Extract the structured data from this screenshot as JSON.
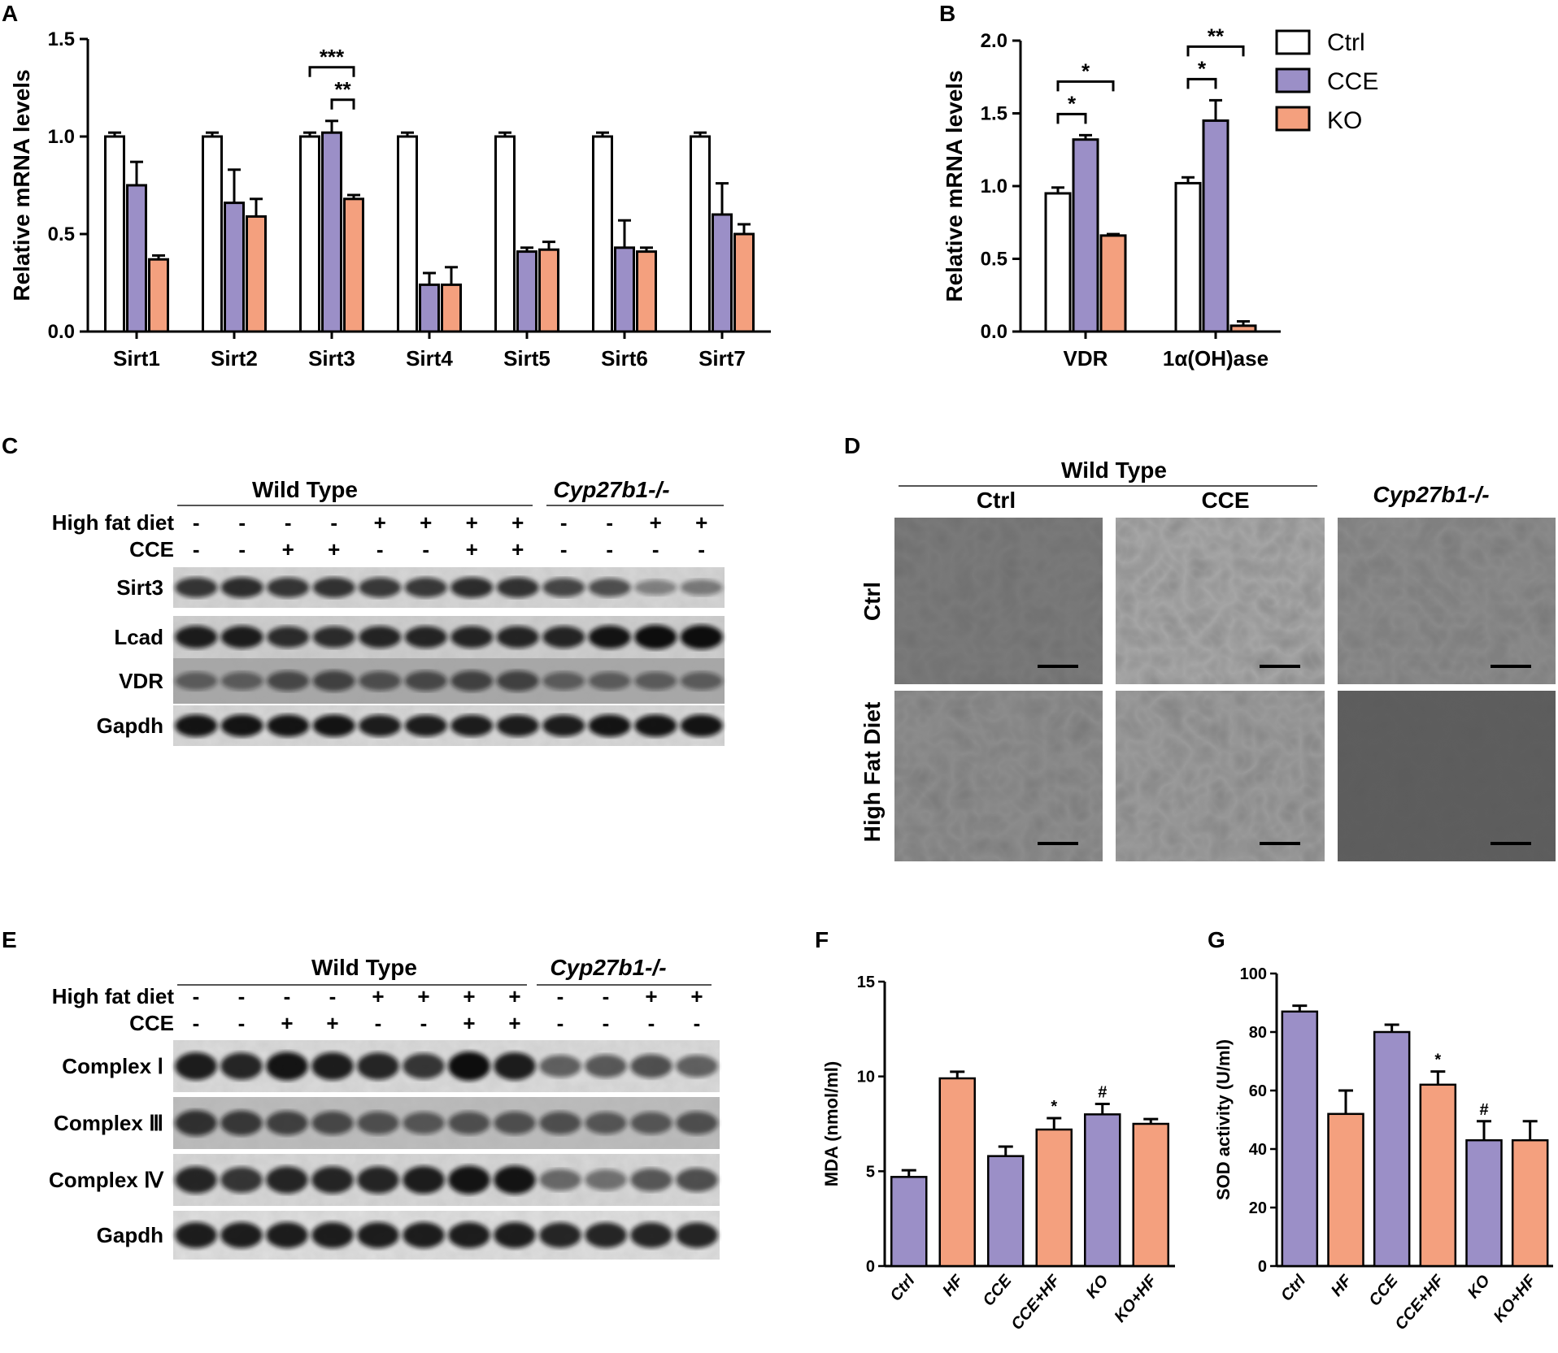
{
  "panels": {
    "A": "A",
    "B": "B",
    "C": "C",
    "D": "D",
    "E": "E",
    "F": "F",
    "G": "G"
  },
  "colors": {
    "ctrl": "#ffffff",
    "cce": "#9b8fc7",
    "ko": "#f4a07e",
    "edge": "#000000"
  },
  "legend": {
    "items": [
      "Ctrl",
      "CCE",
      "KO"
    ]
  },
  "chart_data": [
    {
      "panel": "A",
      "type": "bar",
      "ylabel": "Relative mRNA levels",
      "ylim": [
        0,
        1.5
      ],
      "yticks": [
        "0.0",
        "0.5",
        "1.0",
        "1.5"
      ],
      "categories": [
        "Sirt1",
        "Sirt2",
        "Sirt3",
        "Sirt4",
        "Sirt5",
        "Sirt6",
        "Sirt7"
      ],
      "series": [
        {
          "name": "Ctrl",
          "values": [
            1.0,
            1.0,
            1.0,
            1.0,
            1.0,
            1.0,
            1.0
          ],
          "err": [
            0.02,
            0.02,
            0.02,
            0.02,
            0.02,
            0.02,
            0.02
          ]
        },
        {
          "name": "CCE",
          "values": [
            0.75,
            0.66,
            1.02,
            0.24,
            0.41,
            0.43,
            0.6
          ],
          "err": [
            0.12,
            0.17,
            0.06,
            0.06,
            0.02,
            0.14,
            0.16
          ]
        },
        {
          "name": "KO",
          "values": [
            0.37,
            0.59,
            0.68,
            0.24,
            0.42,
            0.41,
            0.5
          ],
          "err": [
            0.02,
            0.09,
            0.02,
            0.09,
            0.04,
            0.02,
            0.05
          ]
        }
      ],
      "annotations": [
        {
          "category": "Sirt3",
          "from": "Ctrl",
          "to": "KO",
          "text": "***"
        },
        {
          "category": "Sirt3",
          "from": "CCE",
          "to": "KO",
          "text": "**"
        }
      ]
    },
    {
      "panel": "B",
      "type": "bar",
      "ylabel": "Relative mRNA levels",
      "ylim": [
        0,
        2.0
      ],
      "yticks": [
        "0.0",
        "0.5",
        "1.0",
        "1.5",
        "2.0"
      ],
      "categories": [
        "VDR",
        "1α(OH)ase"
      ],
      "series": [
        {
          "name": "Ctrl",
          "values": [
            0.95,
            1.02
          ],
          "err": [
            0.04,
            0.04
          ]
        },
        {
          "name": "CCE",
          "values": [
            1.32,
            1.45
          ],
          "err": [
            0.03,
            0.14
          ]
        },
        {
          "name": "KO",
          "values": [
            0.66,
            0.04
          ],
          "err": [
            0.01,
            0.03
          ]
        }
      ],
      "annotations": [
        {
          "category": "VDR",
          "from": "Ctrl",
          "to": "CCE",
          "text": "*"
        },
        {
          "category": "VDR",
          "from": "Ctrl",
          "to": "KO",
          "text": "*"
        },
        {
          "category": "1α(OH)ase",
          "from": "Ctrl",
          "to": "CCE",
          "text": "*"
        },
        {
          "category": "1α(OH)ase",
          "from": "Ctrl",
          "to": "KO",
          "text": "**"
        }
      ]
    },
    {
      "panel": "F",
      "type": "bar",
      "ylabel": "MDA (nmol/ml)",
      "ylim": [
        0,
        15
      ],
      "yticks": [
        "0",
        "5",
        "10",
        "15"
      ],
      "categories": [
        "Ctrl",
        "HF",
        "CCE",
        "CCE+HF",
        "KO",
        "KO+HF"
      ],
      "values": [
        4.7,
        9.9,
        5.8,
        7.2,
        8.0,
        7.5
      ],
      "err": [
        0.35,
        0.35,
        0.5,
        0.6,
        0.55,
        0.25
      ],
      "bar_colors": [
        "cce",
        "ko",
        "cce",
        "ko",
        "cce",
        "ko"
      ],
      "marks": [
        "",
        "",
        "",
        "*",
        "#",
        ""
      ]
    },
    {
      "panel": "G",
      "type": "bar",
      "ylabel": "SOD activity (U/ml)",
      "ylim": [
        0,
        100
      ],
      "yticks": [
        "0",
        "20",
        "40",
        "60",
        "80",
        "100"
      ],
      "categories": [
        "Ctrl",
        "HF",
        "CCE",
        "CCE+HF",
        "KO",
        "KO+HF"
      ],
      "values": [
        87,
        52,
        80,
        62,
        43,
        43
      ],
      "err": [
        2,
        8,
        2.5,
        4.5,
        6.5,
        6.5
      ],
      "bar_colors": [
        "cce",
        "ko",
        "cce",
        "ko",
        "cce",
        "ko"
      ],
      "marks": [
        "",
        "",
        "",
        "*",
        "#",
        ""
      ]
    }
  ],
  "blot_C": {
    "wild_type": "Wild Type",
    "knockout": "Cyp27b1-/-",
    "row_high_fat": "High fat diet",
    "row_cce": "CCE",
    "high_fat": [
      "-",
      "-",
      "-",
      "-",
      "+",
      "+",
      "+",
      "+",
      "-",
      "-",
      "+",
      "+"
    ],
    "cce": [
      "-",
      "-",
      "+",
      "+",
      "-",
      "-",
      "+",
      "+",
      "-",
      "-",
      "-",
      "-"
    ],
    "bands": [
      "Sirt3",
      "Lcad",
      "VDR",
      "Gapdh"
    ]
  },
  "blot_E": {
    "wild_type": "Wild Type",
    "knockout": "Cyp27b1-/-",
    "row_high_fat": "High fat diet",
    "row_cce": "CCE",
    "high_fat": [
      "-",
      "-",
      "-",
      "-",
      "+",
      "+",
      "+",
      "+",
      "-",
      "-",
      "+",
      "+"
    ],
    "cce": [
      "-",
      "-",
      "+",
      "+",
      "-",
      "-",
      "+",
      "+",
      "-",
      "-",
      "-",
      "-"
    ],
    "bands": [
      "Complex Ⅰ",
      "Complex Ⅲ",
      "Complex Ⅳ",
      "Gapdh"
    ]
  },
  "em_D": {
    "wild_type": "Wild Type",
    "columns": [
      "Ctrl",
      "CCE",
      "Cyp27b1-/-"
    ],
    "rows": [
      "Ctrl",
      "High Fat Diet"
    ]
  }
}
